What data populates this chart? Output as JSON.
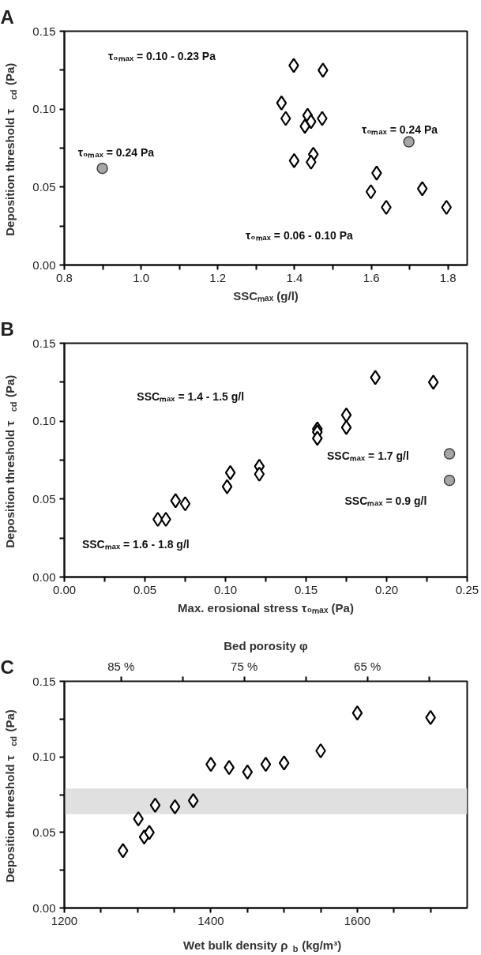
{
  "chart_data": [
    {
      "type": "scatter",
      "title": "A",
      "xlabel": "SSCₘₐₓ (g/l)",
      "ylabel": "Deposition threshold τ$_{cd}$ (Pa)",
      "xlim": [
        0.8,
        1.85
      ],
      "xticks": [
        {
          "value": 0.8,
          "label": "0.8"
        },
        {
          "value": 0.9,
          "label": null
        },
        {
          "value": 1.0,
          "label": "1.0"
        },
        {
          "value": 1.1,
          "label": null
        },
        {
          "value": 1.2,
          "label": "1.2"
        },
        {
          "value": 1.3,
          "label": null
        },
        {
          "value": 1.4,
          "label": "1.4"
        },
        {
          "value": 1.5,
          "label": null
        },
        {
          "value": 1.6,
          "label": "1.6"
        },
        {
          "value": 1.7,
          "label": null
        },
        {
          "value": 1.8,
          "label": "1.8"
        }
      ],
      "ylim": [
        0,
        0.15
      ],
      "yticks": [
        {
          "value": 0,
          "label": "0.00"
        },
        {
          "value": 0.025,
          "label": null
        },
        {
          "value": 0.05,
          "label": "0.05"
        },
        {
          "value": 0.075,
          "label": null
        },
        {
          "value": 0.1,
          "label": "0.10"
        },
        {
          "value": 0.125,
          "label": null
        },
        {
          "value": 0.15,
          "label": "0.15"
        }
      ],
      "grid": false,
      "series": [
        {
          "color": "#000000",
          "marker": "diamond",
          "x": [
            1.398,
            1.474,
            1.366,
            1.377,
            1.434,
            1.443,
            1.427,
            1.472,
            1.399,
            1.449,
            1.443
          ],
          "values": [
            0.128,
            0.125,
            0.104,
            0.094,
            0.096,
            0.092,
            0.089,
            0.094,
            0.067,
            0.071,
            0.066
          ]
        },
        {
          "color": "#000000",
          "marker": "diamond",
          "x": [
            1.614,
            1.599,
            1.639,
            1.733,
            1.796
          ],
          "values": [
            0.059,
            0.047,
            0.037,
            0.049,
            0.037
          ]
        },
        {
          "color": "#a6a6a6",
          "marker": "circle",
          "x": [
            0.899,
            1.698
          ],
          "values": [
            0.062,
            0.079
          ]
        }
      ],
      "annotations": [
        "τ₀ₘₐₓ = 0.10 - 0.23 Pa",
        "τ₀ₘₐₓ = 0.24 Pa",
        "τ₀ₘₐₓ = 0.24 Pa",
        "τ₀ₘₐₓ = 0.06 - 0.10 Pa"
      ]
    },
    {
      "type": "scatter",
      "title": "B",
      "xlabel": "Max. erosional stress τ₀ₘₐₓ (Pa)",
      "ylabel": "Deposition threshold τ$_{cd}$ (Pa)",
      "xlim": [
        0,
        0.25
      ],
      "xticks": [
        {
          "value": 0,
          "label": "0.00"
        },
        {
          "value": 0.025,
          "label": null
        },
        {
          "value": 0.05,
          "label": "0.05"
        },
        {
          "value": 0.075,
          "label": null
        },
        {
          "value": 0.1,
          "label": "0.10"
        },
        {
          "value": 0.125,
          "label": null
        },
        {
          "value": 0.15,
          "label": "0.15"
        },
        {
          "value": 0.175,
          "label": null
        },
        {
          "value": 0.2,
          "label": "0.20"
        },
        {
          "value": 0.225,
          "label": null
        },
        {
          "value": 0.25,
          "label": "0.25"
        }
      ],
      "ylim": [
        0,
        0.15
      ],
      "yticks": [
        {
          "value": 0,
          "label": "0.00"
        },
        {
          "value": 0.025,
          "label": null
        },
        {
          "value": 0.05,
          "label": "0.05"
        },
        {
          "value": 0.075,
          "label": null
        },
        {
          "value": 0.1,
          "label": "0.10"
        },
        {
          "value": 0.125,
          "label": null
        },
        {
          "value": 0.15,
          "label": "0.15"
        }
      ],
      "grid": false,
      "series": [
        {
          "color": "#000000",
          "marker": "diamond",
          "x": [
            0.103,
            0.121,
            0.121,
            0.157,
            0.157,
            0.157,
            0.175,
            0.175,
            0.193,
            0.229
          ],
          "values": [
            0.067,
            0.071,
            0.066,
            0.095,
            0.093,
            0.089,
            0.104,
            0.096,
            0.128,
            0.125
          ]
        },
        {
          "color": "#000000",
          "marker": "diamond",
          "x": [
            0.058,
            0.063,
            0.069,
            0.075,
            0.101
          ],
          "values": [
            0.037,
            0.037,
            0.049,
            0.047,
            0.058
          ]
        },
        {
          "color": "#a6a6a6",
          "marker": "circle",
          "x": [
            0.239,
            0.239
          ],
          "values": [
            0.079,
            0.062
          ]
        }
      ],
      "annotations": [
        "SSCₘₐₓ = 1.4 - 1.5 g/l",
        "SSCₘₐₓ = 1.7 g/l",
        "SSCₘₐₓ = 0.9 g/l",
        "SSCₘₐₓ = 1.6 - 1.8 g/l"
      ]
    },
    {
      "type": "scatter",
      "title": "C",
      "xlabel": "Wet bulk density ρ$_{b}$ (kg/m³)",
      "x2label": "Bed porosity φ",
      "ylabel": "Deposition threshold τ$_{cd}$ (Pa)",
      "xlim": [
        1200,
        1750
      ],
      "xticks": [
        {
          "value": 1200,
          "label": "1200"
        },
        {
          "value": 1250,
          "label": null
        },
        {
          "value": 1300,
          "label": null
        },
        {
          "value": 1350,
          "label": null
        },
        {
          "value": 1400,
          "label": "1400"
        },
        {
          "value": 1450,
          "label": null
        },
        {
          "value": 1500,
          "label": null
        },
        {
          "value": 1550,
          "label": null
        },
        {
          "value": 1600,
          "label": "1600"
        },
        {
          "value": 1650,
          "label": null
        },
        {
          "value": 1700,
          "label": null
        }
      ],
      "x2lim": [
        89.6,
        56.9
      ],
      "x2ticks": [
        {
          "value": 85,
          "label": "85 %"
        },
        {
          "value": 80,
          "label": null
        },
        {
          "value": 75,
          "label": "75 %"
        },
        {
          "value": 70,
          "label": null
        },
        {
          "value": 65,
          "label": "65 %"
        },
        {
          "value": 60,
          "label": null
        }
      ],
      "ylim": [
        0,
        0.15
      ],
      "yticks": [
        {
          "value": 0,
          "label": "0.00"
        },
        {
          "value": 0.025,
          "label": null
        },
        {
          "value": 0.05,
          "label": "0.05"
        },
        {
          "value": 0.075,
          "label": null
        },
        {
          "value": 0.1,
          "label": "0.10"
        },
        {
          "value": 0.125,
          "label": null
        },
        {
          "value": 0.15,
          "label": "0.15"
        }
      ],
      "grid": false,
      "bands": [
        {
          "axis": "y",
          "from": 0.062,
          "to": 0.079,
          "color": "#e0e0e0"
        }
      ],
      "series": [
        {
          "color": "#000000",
          "marker": "diamond",
          "x": [
            1280,
            1301,
            1309,
            1316,
            1324,
            1351,
            1376,
            1400,
            1425,
            1450,
            1475,
            1500,
            1550,
            1600,
            1700
          ],
          "values": [
            0.038,
            0.059,
            0.047,
            0.05,
            0.068,
            0.067,
            0.071,
            0.095,
            0.093,
            0.09,
            0.095,
            0.096,
            0.104,
            0.129,
            0.126
          ]
        }
      ]
    }
  ]
}
